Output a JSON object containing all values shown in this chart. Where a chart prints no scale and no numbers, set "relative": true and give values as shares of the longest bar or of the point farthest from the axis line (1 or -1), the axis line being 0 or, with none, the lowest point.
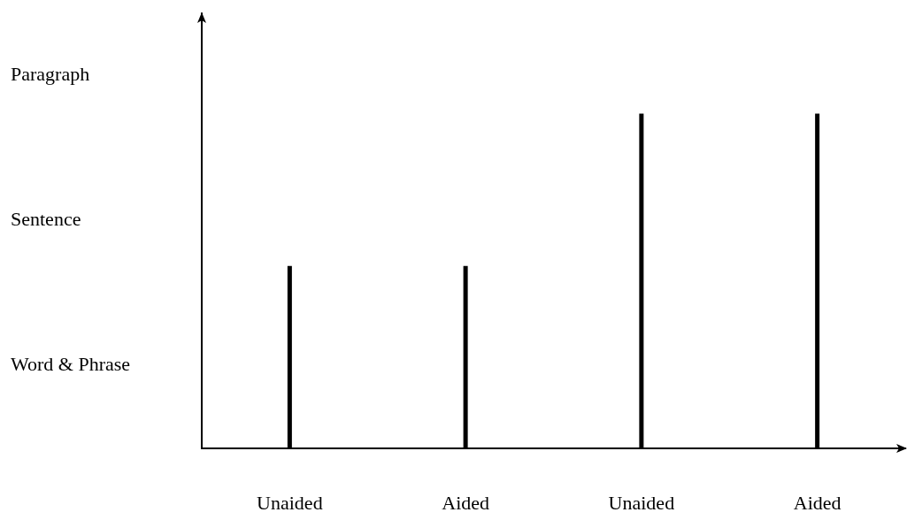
{
  "chart_data": {
    "type": "bar",
    "categories": [
      "Unaided",
      "Aided",
      "Unaided",
      "Aided"
    ],
    "values": [
      0.545,
      0.545,
      1,
      1
    ],
    "color": "#000000",
    "relative": true,
    "annotations": [
      "Paragraph",
      "Sentence",
      "Word & Phrase"
    ],
    "grid": false
  }
}
